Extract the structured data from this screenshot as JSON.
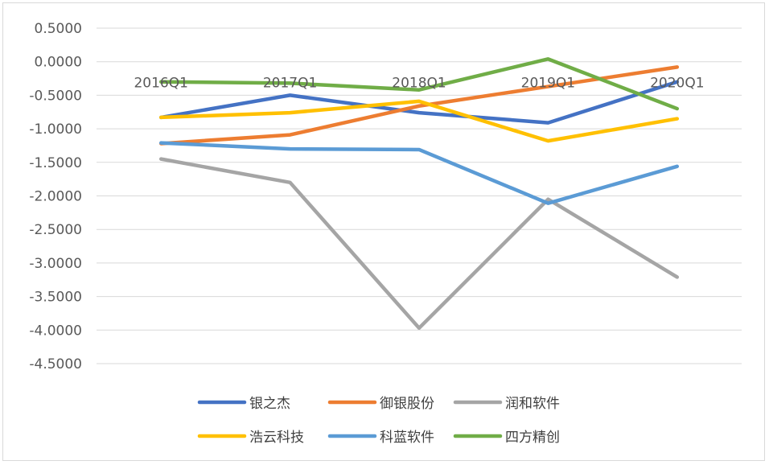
{
  "chart_data": {
    "type": "line",
    "categories": [
      "2016Q1",
      "2017Q1",
      "2018Q1",
      "2019Q1",
      "2020Q1"
    ],
    "ylim": [
      -4.5,
      0.5
    ],
    "yticks": [
      "0.5000",
      "0.0000",
      "-0.5000",
      "-1.0000",
      "-1.5000",
      "-2.0000",
      "-2.5000",
      "-3.0000",
      "-3.5000",
      "-4.0000",
      "-4.5000"
    ],
    "grid": true,
    "legend": "bottom",
    "series": [
      {
        "name": "银之杰",
        "color": "#4472C4",
        "values": [
          -0.83,
          -0.5,
          -0.76,
          -0.91,
          -0.3
        ]
      },
      {
        "name": "御银股份",
        "color": "#ED7D31",
        "values": [
          -1.22,
          -1.09,
          -0.66,
          -0.37,
          -0.08
        ]
      },
      {
        "name": "润和软件",
        "color": "#A5A5A5",
        "values": [
          -1.45,
          -1.8,
          -3.97,
          -2.05,
          -3.21
        ]
      },
      {
        "name": "浩云科技",
        "color": "#FFC000",
        "values": [
          -0.83,
          -0.76,
          -0.59,
          -1.18,
          -0.85
        ]
      },
      {
        "name": "科蓝软件",
        "color": "#5B9BD5",
        "values": [
          -1.21,
          -1.3,
          -1.31,
          -2.11,
          -1.56
        ]
      },
      {
        "name": "四方精创",
        "color": "#70AD47",
        "values": [
          -0.3,
          -0.32,
          -0.42,
          0.04,
          -0.7
        ]
      }
    ]
  }
}
